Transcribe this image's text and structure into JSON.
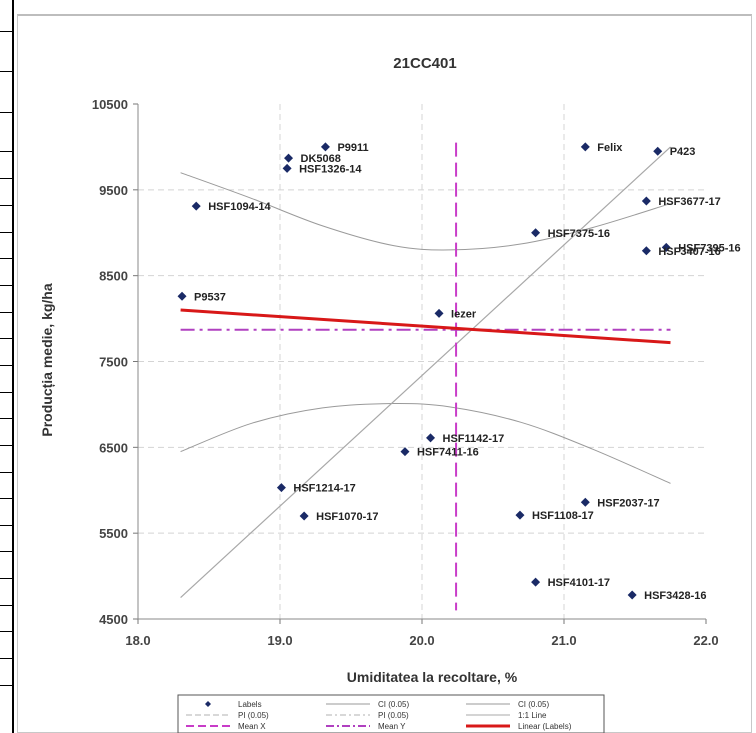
{
  "colors": {
    "point": "#1a2a66",
    "ci": "#9a9a9a",
    "pi": "#b0b0b0",
    "line11": "#a8a8a8",
    "mean_x": "#c83cc8",
    "mean_y": "#b040c0",
    "linear": "#d81818",
    "grid": "#d4d4d4"
  },
  "chart_data": {
    "type": "scatter",
    "title": "21CC401",
    "xlabel": "Umiditatea la recoltare, %",
    "ylabel": "Producția medie, kg/ha",
    "xlim": [
      18.0,
      22.0
    ],
    "ylim": [
      4500,
      10500
    ],
    "xticks": [
      "18.0",
      "19.0",
      "20.0",
      "21.0",
      "22.0"
    ],
    "yticks": [
      "4500",
      "5500",
      "6500",
      "7500",
      "8500",
      "9500",
      "10500"
    ],
    "grid": true,
    "legend_position": "bottom",
    "points": [
      {
        "label": "P9911",
        "x": 19.32,
        "y": 10000
      },
      {
        "label": "DK5068",
        "x": 19.06,
        "y": 9870
      },
      {
        "label": "HSF1326-14",
        "x": 19.05,
        "y": 9750
      },
      {
        "label": "HSF1094-14",
        "x": 18.41,
        "y": 9310
      },
      {
        "label": "Felix",
        "x": 21.15,
        "y": 10000
      },
      {
        "label": "P423",
        "x": 21.66,
        "y": 9950
      },
      {
        "label": "HSF3677-17",
        "x": 21.58,
        "y": 9370
      },
      {
        "label": "HSF7375-16",
        "x": 20.8,
        "y": 9000
      },
      {
        "label": "HSF7395-16",
        "x": 21.72,
        "y": 8830
      },
      {
        "label": "HSF3407-16",
        "x": 21.58,
        "y": 8790
      },
      {
        "label": "P9537",
        "x": 18.31,
        "y": 8260
      },
      {
        "label": "Iezer",
        "x": 20.12,
        "y": 8060
      },
      {
        "label": "HSF1142-17",
        "x": 20.06,
        "y": 6610
      },
      {
        "label": "HSF7411-16",
        "x": 19.88,
        "y": 6450
      },
      {
        "label": "HSF1214-17",
        "x": 19.01,
        "y": 6030
      },
      {
        "label": "HSF2037-17",
        "x": 21.15,
        "y": 5860
      },
      {
        "label": "HSF1070-17",
        "x": 19.17,
        "y": 5700
      },
      {
        "label": "HSF1108-17",
        "x": 20.69,
        "y": 5710
      },
      {
        "label": "HSF4101-17",
        "x": 20.8,
        "y": 4930
      },
      {
        "label": "HSF3428-16",
        "x": 21.48,
        "y": 4780
      }
    ],
    "linear_fit": {
      "x": [
        18.3,
        21.75
      ],
      "y": [
        8100,
        7720
      ]
    },
    "line_1_1": {
      "x": [
        18.3,
        21.75
      ],
      "y": [
        4750,
        10000
      ]
    },
    "mean_x": 20.24,
    "mean_y": 7870,
    "ci_upper": {
      "x": [
        18.3,
        18.8,
        19.3,
        19.8,
        20.2,
        20.7,
        21.2,
        21.75
      ],
      "y": [
        9700,
        9400,
        9080,
        8850,
        8800,
        8870,
        9060,
        9340
      ]
    },
    "ci_lower": {
      "x": [
        18.3,
        18.8,
        19.3,
        19.8,
        20.2,
        20.7,
        21.2,
        21.75
      ],
      "y": [
        6450,
        6780,
        6960,
        7010,
        6970,
        6790,
        6480,
        6080
      ]
    },
    "legend": [
      {
        "label": "Labels",
        "style": "marker"
      },
      {
        "label": "CI (0.05)",
        "style": "ci"
      },
      {
        "label": "CI (0.05)",
        "style": "ci2"
      },
      {
        "label": "PI (0.05)",
        "style": "pi"
      },
      {
        "label": "PI (0.05)",
        "style": "pi2"
      },
      {
        "label": "1:1 Line",
        "style": "line11"
      },
      {
        "label": "Mean X",
        "style": "meanx"
      },
      {
        "label": "Mean Y",
        "style": "meany"
      },
      {
        "label": "Linear (Labels)",
        "style": "linear"
      }
    ]
  }
}
